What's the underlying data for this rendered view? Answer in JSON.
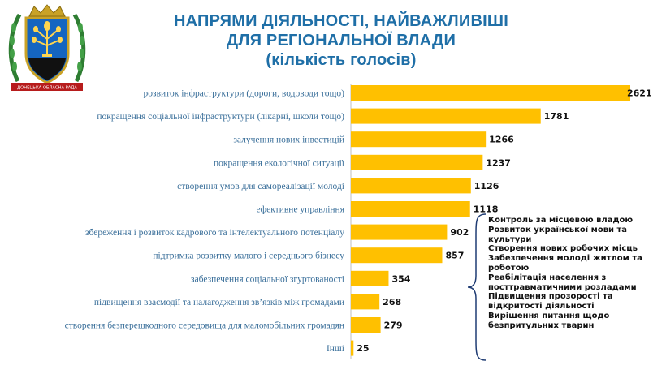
{
  "header": {
    "title_line1": "НАПРЯМИ ДІЯЛЬНОСТІ, НАЙВАЖЛИВІШІ",
    "title_line2": "ДЛЯ РЕГІОНАЛЬНОЇ ВЛАДИ",
    "title_line3": "(кількість голосів)"
  },
  "emblem": {
    "ribbon_text": "ДОНЕЦЬКА ОБЛАСНА РАДА"
  },
  "colors": {
    "bar": "#FFC000",
    "title": "#1F6FA7",
    "label": "#3A6F9A"
  },
  "chart_data": {
    "type": "bar",
    "orientation": "horizontal",
    "title": "НАПРЯМИ ДІЯЛЬНОСТІ, НАЙВАЖЛИВІШІ ДЛЯ РЕГІОНАЛЬНОЇ ВЛАДИ (кількість голосів)",
    "categories": [
      "розвиток інфраструктури (дороги, водоводи тощо)",
      "покращення соціальної інфраструктури (лікарні, школи тощо)",
      "залучення нових інвестицій",
      "покращення екологічної ситуації",
      "створення умов для самореалізації молоді",
      "ефективне управління",
      "збереження і розвиток кадрового та інтелектуального потенціалу",
      "підтримка розвитку малого і середнього бізнесу",
      "забезпечення соціальної згуртованості",
      "підвищення взаємодії та налагодження зв’язків між громадами",
      "створення безперешкодного середовища для маломобільних громадян",
      "Інші"
    ],
    "values": [
      2621,
      1781,
      1266,
      1237,
      1126,
      1118,
      902,
      857,
      354,
      268,
      279,
      25
    ],
    "value_labels": [
      "2621",
      "1781",
      "1266",
      "1237",
      "1126",
      "1118",
      "902",
      "857",
      "354",
      "268",
      "279",
      "25"
    ],
    "xlim": [
      0,
      2621
    ],
    "grid": false,
    "legend": "none"
  },
  "others_note": {
    "items": [
      "Контроль за місцевою владою",
      "Розвиток української мови та культури",
      "Створення нових робочих місць",
      "Забезпечення молоді житлом та роботою",
      "Реабілітація населення з посттравматичними розладами",
      "Підвищення прозорості та відкритості діяльності",
      "Вирішення питання щодо безпритульних тварин"
    ]
  }
}
